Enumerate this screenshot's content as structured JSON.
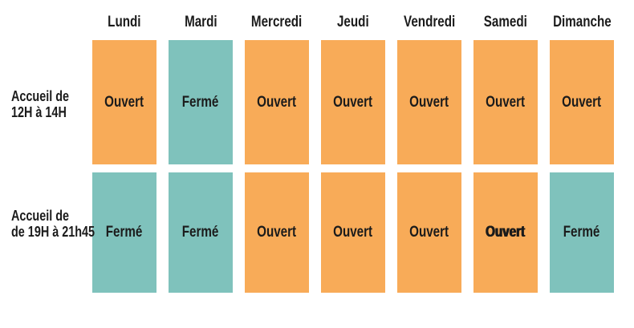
{
  "palette": {
    "open_color": "#F8AB58",
    "closed_color": "#7FC2BC",
    "text_color": "#1B1B1B",
    "background_color": "#FFFFFF"
  },
  "chart_data": {
    "type": "table",
    "columns": [
      "Lundi",
      "Mardi",
      "Mercredi",
      "Jeudi",
      "Vendredi",
      "Samedi",
      "Dimanche"
    ],
    "row_labels": [
      [
        "Accueil de",
        "12H à 14H"
      ],
      [
        "Accueil de",
        "de 19H à 21h45"
      ]
    ],
    "rows": [
      {
        "cells": [
          {
            "label": "Ouvert",
            "state": "open"
          },
          {
            "label": "Fermé",
            "state": "closed"
          },
          {
            "label": "Ouvert",
            "state": "open"
          },
          {
            "label": "Ouvert",
            "state": "open"
          },
          {
            "label": "Ouvert",
            "state": "open"
          },
          {
            "label": "Ouvert",
            "state": "open"
          },
          {
            "label": "Ouvert",
            "state": "open"
          }
        ]
      },
      {
        "cells": [
          {
            "label": "Fermé",
            "state": "closed"
          },
          {
            "label": "Fermé",
            "state": "closed"
          },
          {
            "label": "Ouvert",
            "state": "open"
          },
          {
            "label": "Ouvert",
            "state": "open"
          },
          {
            "label": "Ouvert",
            "state": "open"
          },
          {
            "label": "Ouvert",
            "state": "open",
            "emphasis": true
          },
          {
            "label": "Fermé",
            "state": "closed"
          }
        ]
      }
    ],
    "legend": {
      "open_label": "Ouvert",
      "closed_label": "Fermé"
    }
  }
}
